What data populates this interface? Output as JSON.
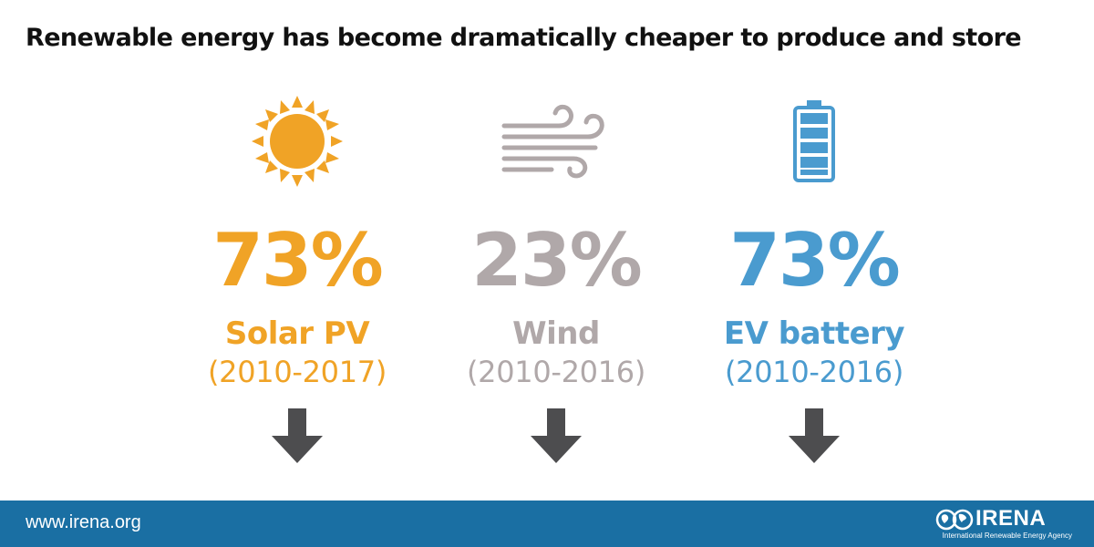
{
  "title": "Renewable energy has become dramatically cheaper to produce and store",
  "colors": {
    "solar": "#f0a326",
    "wind": "#b0a8a9",
    "ev": "#4a9bcf",
    "arrow": "#4d4d4f",
    "footer": "#1a6fa3"
  },
  "items": [
    {
      "icon": "sun-icon",
      "percent": "73%",
      "label": "Solar PV",
      "period": "(2010-2017)"
    },
    {
      "icon": "wind-icon",
      "percent": "23%",
      "label": "Wind",
      "period": "(2010-2016)"
    },
    {
      "icon": "battery-icon",
      "percent": "73%",
      "label": "EV battery",
      "period": "(2010-2016)"
    }
  ],
  "footer": {
    "url": "www.irena.org",
    "logo_text": "IRENA",
    "agency_name": "International Renewable Energy Agency"
  }
}
